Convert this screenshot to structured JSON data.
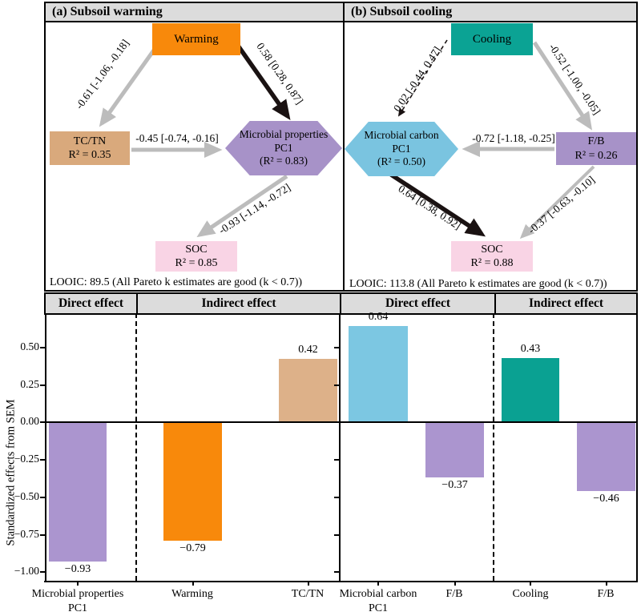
{
  "colors": {
    "warming_orange": "#f8890b",
    "cooling_teal": "#0ba394",
    "tan": "#d9a97c",
    "purple": "#a792c8",
    "pink": "#f9d4e5",
    "blue": "#7ac4e0",
    "arrow_gray": "#bcbcbc",
    "arrow_black": "#1a1212",
    "header_gray": "#dcdcdc"
  },
  "panels": {
    "a": {
      "header": "(a) Subsoil warming",
      "nodes": {
        "warming": "Warming",
        "tctn": {
          "line1": "TC/TN",
          "line2": "R² = 0.35"
        },
        "pc1": {
          "line1": "Microbial properties",
          "line2": "PC1",
          "line3": "(R² = 0.83)"
        },
        "soc": {
          "line1": "SOC",
          "line2": "R² = 0.85"
        }
      },
      "edges": {
        "warming_tctn": "-0.61 [-1.06, -0.18]",
        "warming_pc1": "0.58 [0.28, 0.87]",
        "tctn_pc1": "-0.45 [-0.74, -0.16]",
        "pc1_soc": "-0.93 [-1.14, -0.72]"
      },
      "looic": "LOOIC: 89.5 (All Pareto k estimates are good (k < 0.7))"
    },
    "b": {
      "header": "(b) Subsoil cooling",
      "nodes": {
        "cooling": "Cooling",
        "fb": {
          "line1": "F/B",
          "line2": "R² = 0.26"
        },
        "pc1": {
          "line1": "Microbial carbon",
          "line2": "PC1",
          "line3": "(R² = 0.50)"
        },
        "soc": {
          "line1": "SOC",
          "line2": "R² = 0.88"
        }
      },
      "edges": {
        "cooling_pc1": "0.02 [-0.44, 0.47]",
        "cooling_fb": "-0.52 [-1.00, -0.05]",
        "fb_pc1": "-0.72 [-1.18, -0.25]",
        "pc1_soc": "0.64 [0.38, 0.92]",
        "fb_soc": "-0.37 [-0.63, -0.10]"
      },
      "looic": "LOOIC: 113.8 (All Pareto k estimates are good (k < 0.7))"
    }
  },
  "chart": {
    "headers": [
      "Direct effect",
      "Indirect effect",
      "Direct effect",
      "Indirect effect"
    ],
    "ylabel": "Standardized effects from SEM",
    "ytick_labels": [
      "0.50",
      "0.25",
      "0.00",
      "−0.25",
      "−0.50",
      "−0.75",
      "−1.00"
    ]
  },
  "chart_data": [
    {
      "type": "bar",
      "panel": "(a) Subsoil warming",
      "ylabel": "Standardized effects from SEM",
      "ylim": [
        -1.11,
        0.76
      ],
      "yticks": [
        0.5,
        0.25,
        0.0,
        -0.25,
        -0.5,
        -0.75,
        -1.0
      ],
      "group_labels": [
        "Direct effect",
        "Indirect effect"
      ],
      "categories": [
        "Microbial properties\nPC1",
        "Warming",
        "TC/TN"
      ],
      "values": [
        -0.93,
        -0.79,
        0.42
      ],
      "bars": [
        {
          "category": "Microbial properties\nPC1",
          "group": "Direct effect",
          "value": -0.93,
          "label": "−0.93",
          "color": "#ab95cf"
        },
        {
          "category": "Warming",
          "group": "Indirect effect",
          "value": -0.79,
          "label": "−0.79",
          "color": "#f8890b"
        },
        {
          "category": "TC/TN",
          "group": "Indirect effect",
          "value": 0.42,
          "label": "0.42",
          "color": "#ddb189"
        }
      ]
    },
    {
      "type": "bar",
      "panel": "(b) Subsoil cooling",
      "ylabel": "Standardized effects from SEM",
      "ylim": [
        -1.11,
        0.76
      ],
      "yticks": [
        0.5,
        0.25,
        0.0,
        -0.25,
        -0.5,
        -0.75,
        -1.0
      ],
      "group_labels": [
        "Direct effect",
        "Indirect effect"
      ],
      "categories": [
        "Microbial carbon\nPC1",
        "F/B",
        "Cooling",
        "F/B"
      ],
      "values": [
        0.64,
        -0.37,
        0.43,
        -0.46
      ],
      "bars": [
        {
          "category": "Microbial carbon\nPC1",
          "group": "Direct effect",
          "value": 0.64,
          "label": "0.64",
          "color": "#7cc7e2"
        },
        {
          "category": "F/B",
          "group": "Direct effect",
          "value": -0.37,
          "label": "−0.37",
          "color": "#ab95cf"
        },
        {
          "category": "Cooling",
          "group": "Indirect effect",
          "value": 0.43,
          "label": "0.43",
          "color": "#0aa192"
        },
        {
          "category": "F/B",
          "group": "Indirect effect",
          "value": -0.46,
          "label": "−0.46",
          "color": "#ab95cf"
        }
      ]
    }
  ]
}
